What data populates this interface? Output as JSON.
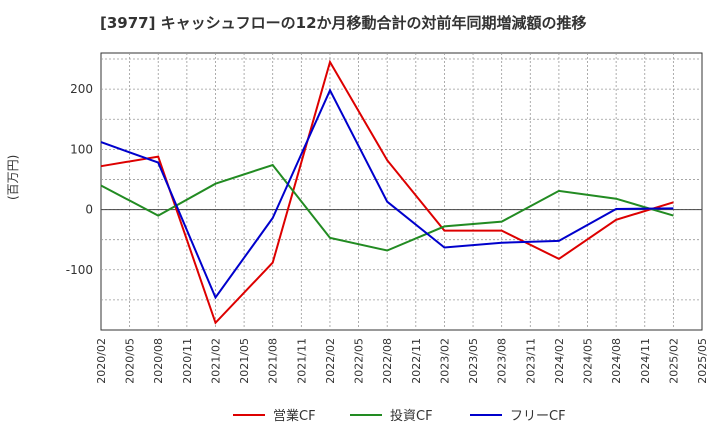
{
  "chart_data": {
    "type": "line",
    "title": "[3977]  キャッシュフローの12か月移動合計の対前年同期増減額の推移",
    "ylabel": "(百万円)",
    "xlabel": "",
    "ylim": [
      -200,
      260
    ],
    "yticks": [
      -100,
      0,
      100,
      200
    ],
    "grid": true,
    "legend_position": "bottom",
    "x_tick_labels": [
      "2020/02",
      "2020/05",
      "2020/08",
      "2020/11",
      "2021/02",
      "2021/05",
      "2021/08",
      "2021/11",
      "2022/02",
      "2022/05",
      "2022/08",
      "2022/11",
      "2023/02",
      "2023/05",
      "2023/08",
      "2023/11",
      "2024/02",
      "2024/05",
      "2024/08",
      "2024/11",
      "2025/02",
      "2025/05"
    ],
    "x": [
      "2020/02",
      "2020/08",
      "2021/02",
      "2021/08",
      "2022/02",
      "2022/08",
      "2023/02",
      "2023/08",
      "2024/02",
      "2024/08",
      "2025/02"
    ],
    "series": [
      {
        "name": "営業CF",
        "color": "#dd0000",
        "values": [
          72,
          88,
          -188,
          -88,
          245,
          82,
          -35,
          -35,
          -82,
          -17,
          12
        ]
      },
      {
        "name": "投資CF",
        "color": "#228b22",
        "values": [
          40,
          -10,
          43,
          74,
          -47,
          -68,
          -28,
          -20,
          31,
          18,
          -10
        ]
      },
      {
        "name": "フリーCF",
        "color": "#0000cc",
        "values": [
          112,
          78,
          -146,
          -14,
          198,
          13,
          -63,
          -55,
          -52,
          1,
          2
        ]
      }
    ]
  }
}
